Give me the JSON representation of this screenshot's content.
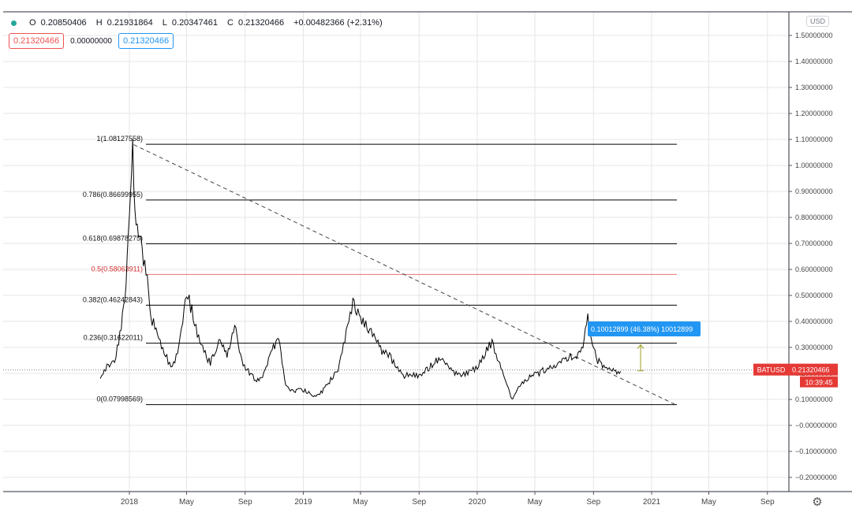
{
  "header": {
    "open_label": "O",
    "open_value": "0.20850406",
    "high_label": "H",
    "high_value": "0.21931864",
    "low_label": "L",
    "low_value": "0.20347461",
    "close_label": "C",
    "close_value": "0.21320466",
    "change_value": "+0.00482366 (+2.31%)"
  },
  "pills": {
    "red_value": "0.21320466",
    "plain_value": "0.00000000",
    "blue_value": "0.21320466"
  },
  "currency_button": "USD",
  "ticker": {
    "symbol": "BATUSD",
    "price": "0.21320466",
    "countdown": "10:39:45"
  },
  "measure_label": "0.10012899 (46.38%) 10012899",
  "settings_icon": "gear-icon",
  "colors": {
    "price_line": "#000000",
    "fib_line": "#000000",
    "fib_mid_line": "#e57373",
    "ticker_bg": "#e53935",
    "measure_bg": "#2196f3",
    "grid": "#e6e6e6"
  },
  "chart_data": {
    "type": "line",
    "x_type": "date",
    "y_axis": {
      "ticks": [
        "1.50000000",
        "1.40000000",
        "1.30000000",
        "1.20000000",
        "1.10000000",
        "1.00000000",
        "0.90000000",
        "0.80000000",
        "0.70000000",
        "0.60000000",
        "0.50000000",
        "0.40000000",
        "0.30000000",
        "0.20000000",
        "0.10000000",
        "−0.00000000",
        "−0.10000000",
        "−0.20000000"
      ],
      "ylim": [
        -0.2,
        1.5
      ]
    },
    "x_axis": {
      "tick_labels": [
        "2018",
        "May",
        "Sep",
        "2019",
        "May",
        "Sep",
        "2020",
        "May",
        "Sep",
        "2021",
        "May",
        "Sep"
      ],
      "tick_dates": [
        "2018-01-01",
        "2018-05-01",
        "2018-09-01",
        "2019-01-01",
        "2019-05-01",
        "2019-09-01",
        "2020-01-01",
        "2020-05-01",
        "2020-09-01",
        "2021-01-01",
        "2021-05-01",
        "2021-09-01"
      ]
    },
    "series": [
      {
        "x": [
          "2017-11-01",
          "2017-11-15",
          "2017-12-01",
          "2017-12-15",
          "2017-12-25",
          "2018-01-01",
          "2018-01-08",
          "2018-01-15",
          "2018-01-25",
          "2018-02-05",
          "2018-02-15",
          "2018-03-01",
          "2018-03-15",
          "2018-04-01",
          "2018-04-15",
          "2018-05-01",
          "2018-05-15",
          "2018-06-01",
          "2018-06-20",
          "2018-07-10",
          "2018-07-25",
          "2018-08-10",
          "2018-08-25",
          "2018-09-10",
          "2018-09-25",
          "2018-10-10",
          "2018-10-25",
          "2018-11-10",
          "2018-11-25",
          "2018-12-10",
          "2018-12-25",
          "2019-01-10",
          "2019-01-25",
          "2019-02-10",
          "2019-02-25",
          "2019-03-15",
          "2019-04-01",
          "2019-04-15",
          "2019-05-01",
          "2019-05-15",
          "2019-06-01",
          "2019-06-15",
          "2019-07-01",
          "2019-07-15",
          "2019-08-01",
          "2019-08-15",
          "2019-09-01",
          "2019-09-15",
          "2019-10-01",
          "2019-10-15",
          "2019-11-01",
          "2019-11-15",
          "2019-12-01",
          "2019-12-15",
          "2020-01-01",
          "2020-01-15",
          "2020-02-01",
          "2020-02-15",
          "2020-03-01",
          "2020-03-13",
          "2020-03-25",
          "2020-04-10",
          "2020-04-25",
          "2020-05-10",
          "2020-05-25",
          "2020-06-10",
          "2020-06-25",
          "2020-07-10",
          "2020-07-25",
          "2020-08-10",
          "2020-08-20",
          "2020-09-01",
          "2020-09-10",
          "2020-09-20",
          "2020-10-01",
          "2020-10-10",
          "2020-10-20",
          "2020-10-28"
        ],
        "y": [
          0.18,
          0.23,
          0.25,
          0.38,
          0.55,
          0.8,
          1.05,
          0.75,
          0.7,
          0.6,
          0.42,
          0.36,
          0.28,
          0.22,
          0.3,
          0.52,
          0.42,
          0.3,
          0.24,
          0.33,
          0.26,
          0.4,
          0.25,
          0.2,
          0.17,
          0.2,
          0.28,
          0.34,
          0.16,
          0.13,
          0.14,
          0.13,
          0.11,
          0.13,
          0.17,
          0.22,
          0.36,
          0.48,
          0.42,
          0.38,
          0.34,
          0.28,
          0.27,
          0.22,
          0.19,
          0.2,
          0.19,
          0.21,
          0.24,
          0.26,
          0.23,
          0.2,
          0.19,
          0.21,
          0.22,
          0.27,
          0.32,
          0.24,
          0.17,
          0.1,
          0.14,
          0.17,
          0.19,
          0.2,
          0.22,
          0.23,
          0.24,
          0.26,
          0.27,
          0.29,
          0.42,
          0.3,
          0.25,
          0.23,
          0.22,
          0.21,
          0.2,
          0.21
        ]
      }
    ],
    "fib_levels": [
      {
        "label": "1(1.08127558)",
        "value": 1.08127558,
        "highlight": false
      },
      {
        "label": "0.786(0.86699955)",
        "value": 0.86699955,
        "highlight": false
      },
      {
        "label": "0.618(0.69878275)",
        "value": 0.69878275,
        "highlight": false
      },
      {
        "label": "0.5(0.58063911)",
        "value": 0.58063911,
        "highlight": true
      },
      {
        "label": "0.382(0.46242843)",
        "value": 0.46242843,
        "highlight": false
      },
      {
        "label": "0.236(0.31622011)",
        "value": 0.31622011,
        "highlight": false
      },
      {
        "label": "0(0.07998569)",
        "value": 0.07998569,
        "highlight": false
      }
    ],
    "trendline": {
      "from": {
        "x": "2018-01-10",
        "y": 1.08
      },
      "to": {
        "x": "2021-02-20",
        "y": 0.08
      }
    },
    "current_price": 0.21320466,
    "grid": true
  }
}
